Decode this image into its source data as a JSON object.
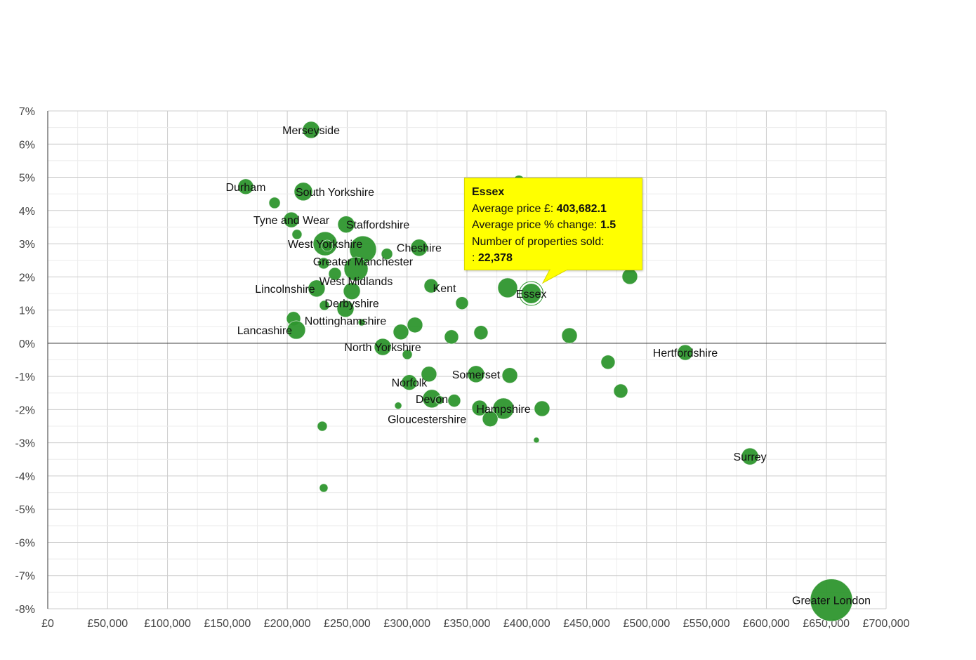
{
  "chart_data": {
    "type": "scatter",
    "title": "",
    "xlabel": "Average price £",
    "ylabel": "Average price % change",
    "size_label": "Number of properties sold",
    "xlim": [
      0,
      700000
    ],
    "ylim": [
      -8,
      7
    ],
    "grid": true,
    "color": "#2e962e",
    "x_ticks": [
      "£0",
      "£50,000",
      "£100,000",
      "£150,000",
      "£200,000",
      "£250,000",
      "£300,000",
      "£350,000",
      "£400,000",
      "£450,000",
      "£500,000",
      "£550,000",
      "£600,000",
      "£650,000",
      "£700,000"
    ],
    "y_ticks": [
      "7%",
      "6%",
      "5%",
      "4%",
      "3%",
      "2%",
      "1%",
      "0%",
      "-1%",
      "-2%",
      "-3%",
      "-4%",
      "-5%",
      "-6%",
      "-7%",
      "-8%"
    ],
    "points": [
      {
        "name": "Merseyside",
        "x": 219900,
        "y": 6.43,
        "sold": 14320,
        "label": true
      },
      {
        "name": "Durham",
        "x": 165300,
        "y": 4.72,
        "sold": 12030,
        "label": true
      },
      {
        "name": "South Yorkshire",
        "x": 213400,
        "y": 4.57,
        "sold": 16810,
        "label": true
      },
      {
        "name": "",
        "x": 189400,
        "y": 4.23,
        "sold": 6370
      },
      {
        "name": "Tyne and Wear",
        "x": 203400,
        "y": 3.72,
        "sold": 12030,
        "label": true
      },
      {
        "name": "",
        "x": 208100,
        "y": 3.28,
        "sold": 4870
      },
      {
        "name": "Staffordshire",
        "x": 249200,
        "y": 3.58,
        "sold": 14320,
        "label": true
      },
      {
        "name": "West Yorkshire",
        "x": 231600,
        "y": 3.0,
        "sold": 28740,
        "label": true
      },
      {
        "name": "Greater Manchester",
        "x": 263200,
        "y": 2.83,
        "sold": 35900,
        "label": true
      },
      {
        "name": "",
        "x": 233300,
        "y": 2.94,
        "sold": 6370
      },
      {
        "name": "",
        "x": 283200,
        "y": 2.69,
        "sold": 6370
      },
      {
        "name": "Cheshire",
        "x": 310100,
        "y": 2.88,
        "sold": 14320,
        "label": true
      },
      {
        "name": "",
        "x": 230400,
        "y": 2.41,
        "sold": 6370
      },
      {
        "name": "",
        "x": 239800,
        "y": 2.09,
        "sold": 8060
      },
      {
        "name": "West Midlands",
        "x": 257400,
        "y": 2.24,
        "sold": 28740,
        "label": true
      },
      {
        "name": "",
        "x": 320100,
        "y": 1.73,
        "sold": 9950
      },
      {
        "name": "Lincolnshire",
        "x": 224500,
        "y": 1.65,
        "sold": 14320,
        "label": true
      },
      {
        "name": "Derbyshire",
        "x": 253900,
        "y": 1.57,
        "sold": 14320,
        "label": true
      },
      {
        "name": "",
        "x": 231000,
        "y": 1.14,
        "sold": 4870
      },
      {
        "name": "",
        "x": 345900,
        "y": 1.21,
        "sold": 8060
      },
      {
        "name": "Nottinghamshire",
        "x": 248600,
        "y": 1.04,
        "sold": 14320,
        "label": true
      },
      {
        "name": "",
        "x": 262100,
        "y": 0.63,
        "sold": 2490
      },
      {
        "name": "",
        "x": 205200,
        "y": 0.74,
        "sold": 9950
      },
      {
        "name": "Lancashire",
        "x": 207500,
        "y": 0.4,
        "sold": 16810,
        "label": true
      },
      {
        "name": "",
        "x": 306600,
        "y": 0.55,
        "sold": 12030
      },
      {
        "name": "",
        "x": 294900,
        "y": 0.34,
        "sold": 12030
      },
      {
        "name": "",
        "x": 337100,
        "y": 0.19,
        "sold": 9950
      },
      {
        "name": "",
        "x": 361700,
        "y": 0.32,
        "sold": 9950
      },
      {
        "name": "",
        "x": 435600,
        "y": 0.23,
        "sold": 12030
      },
      {
        "name": "Kent",
        "x": 384000,
        "y": 1.67,
        "sold": 19500,
        "label": true
      },
      {
        "name": "Essex",
        "x": 403682.1,
        "y": 1.5,
        "sold": 22378,
        "label": true,
        "selected": true
      },
      {
        "name": "",
        "x": 486000,
        "y": 2.01,
        "sold": 12030
      },
      {
        "name": "",
        "x": 393400,
        "y": 4.89,
        "sold": 6370
      },
      {
        "name": "North Yorkshire",
        "x": 279700,
        "y": -0.11,
        "sold": 14320,
        "label": true
      },
      {
        "name": "",
        "x": 300200,
        "y": -0.34,
        "sold": 4870
      },
      {
        "name": "",
        "x": 318300,
        "y": -0.93,
        "sold": 12030
      },
      {
        "name": "Norfolk",
        "x": 301900,
        "y": -1.18,
        "sold": 12030,
        "label": true
      },
      {
        "name": "Somerset",
        "x": 357600,
        "y": -0.93,
        "sold": 14320,
        "label": true
      },
      {
        "name": "",
        "x": 385800,
        "y": -0.97,
        "sold": 12030
      },
      {
        "name": "Devon",
        "x": 320700,
        "y": -1.67,
        "sold": 16810,
        "label": true
      },
      {
        "name": "",
        "x": 327100,
        "y": -1.71,
        "sold": 3580
      },
      {
        "name": "",
        "x": 339400,
        "y": -1.73,
        "sold": 8060
      },
      {
        "name": "",
        "x": 292600,
        "y": -1.88,
        "sold": 2490
      },
      {
        "name": "Hampshire",
        "x": 380500,
        "y": -1.97,
        "sold": 22380,
        "label": true
      },
      {
        "name": "",
        "x": 360600,
        "y": -1.95,
        "sold": 12030
      },
      {
        "name": "",
        "x": 412700,
        "y": -1.97,
        "sold": 12030
      },
      {
        "name": "Gloucestershire",
        "x": 369400,
        "y": -2.28,
        "sold": 12030,
        "label": true
      },
      {
        "name": "",
        "x": 408000,
        "y": -2.92,
        "sold": 1590
      },
      {
        "name": "",
        "x": 229200,
        "y": -2.5,
        "sold": 4870
      },
      {
        "name": "",
        "x": 230400,
        "y": -4.36,
        "sold": 3580
      },
      {
        "name": "",
        "x": 467800,
        "y": -0.57,
        "sold": 9950
      },
      {
        "name": "",
        "x": 478400,
        "y": -1.44,
        "sold": 9950
      },
      {
        "name": "Hertfordshire",
        "x": 532300,
        "y": -0.28,
        "sold": 12030,
        "label": true
      },
      {
        "name": "Surrey",
        "x": 586300,
        "y": -3.41,
        "sold": 14320,
        "label": true
      },
      {
        "name": "Greater London",
        "x": 654300,
        "y": -7.74,
        "sold": 89510,
        "label": true
      }
    ]
  },
  "tooltip": {
    "title": "Essex",
    "price_label": "Average price £:",
    "price_value": "403,682.1",
    "change_label": "Average price % change:",
    "change_value": "1.5",
    "sold_label": "Number of properties sold:",
    "sold_prefix": ":",
    "sold_value": "22,378"
  }
}
